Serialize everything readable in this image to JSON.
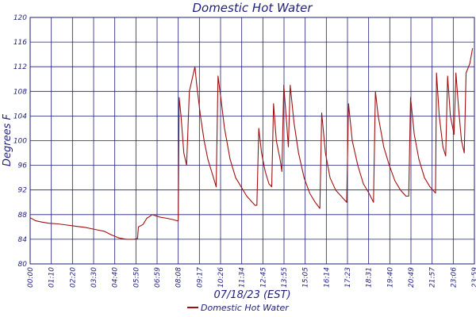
{
  "chart_data": {
    "type": "line",
    "title": "Domestic Hot Water",
    "xlabel": "07/18/23 (EST)",
    "ylabel": "Degrees F",
    "ylim": [
      80,
      120
    ],
    "yticks": [
      "80",
      "84",
      "88",
      "92",
      "96",
      "100",
      "104",
      "108",
      "112",
      "116",
      "120"
    ],
    "xticks": [
      "00:00",
      "01:10",
      "02:20",
      "03:30",
      "04:40",
      "05:50",
      "06:59",
      "08:08",
      "09:17",
      "10:26",
      "11:34",
      "12:45",
      "13:55",
      "15:05",
      "16:14",
      "17:23",
      "18:31",
      "19:40",
      "20:49",
      "21:57",
      "23:06",
      "23:59"
    ],
    "xlim_hours": [
      0,
      24
    ],
    "grid": true,
    "legend_position": "bottom-center",
    "series": [
      {
        "name": "Domestic Hot Water",
        "color": "#a01010",
        "points": [
          [
            0.0,
            87.5
          ],
          [
            0.3,
            87.0
          ],
          [
            0.6,
            86.8
          ],
          [
            1.0,
            86.6
          ],
          [
            1.5,
            86.5
          ],
          [
            2.0,
            86.3
          ],
          [
            2.5,
            86.1
          ],
          [
            3.0,
            85.9
          ],
          [
            3.5,
            85.6
          ],
          [
            4.0,
            85.3
          ],
          [
            4.4,
            84.7
          ],
          [
            4.8,
            84.2
          ],
          [
            5.2,
            84.0
          ],
          [
            5.6,
            84.0
          ],
          [
            5.8,
            84.1
          ],
          [
            5.85,
            86.0
          ],
          [
            6.1,
            86.4
          ],
          [
            6.3,
            87.4
          ],
          [
            6.6,
            88.0
          ],
          [
            7.0,
            87.6
          ],
          [
            7.4,
            87.4
          ],
          [
            7.7,
            87.2
          ],
          [
            7.95,
            87.0
          ],
          [
            8.0,
            87.0
          ],
          [
            8.05,
            107.0
          ],
          [
            8.15,
            104.0
          ],
          [
            8.3,
            98.0
          ],
          [
            8.45,
            96.0
          ],
          [
            8.6,
            108.0
          ],
          [
            8.75,
            110.0
          ],
          [
            8.9,
            112.0
          ],
          [
            9.0,
            109.0
          ],
          [
            9.2,
            104.0
          ],
          [
            9.4,
            100.0
          ],
          [
            9.6,
            97.0
          ],
          [
            9.8,
            95.0
          ],
          [
            9.95,
            93.5
          ],
          [
            10.05,
            92.5
          ],
          [
            10.15,
            110.5
          ],
          [
            10.3,
            107.0
          ],
          [
            10.5,
            102.0
          ],
          [
            10.8,
            97.0
          ],
          [
            11.1,
            94.0
          ],
          [
            11.4,
            92.5
          ],
          [
            11.7,
            91.0
          ],
          [
            12.0,
            90.0
          ],
          [
            12.15,
            89.5
          ],
          [
            12.25,
            89.5
          ],
          [
            12.35,
            102.0
          ],
          [
            12.5,
            98.0
          ],
          [
            12.7,
            95.0
          ],
          [
            12.9,
            93.0
          ],
          [
            13.05,
            92.5
          ],
          [
            13.15,
            106.0
          ],
          [
            13.3,
            100.0
          ],
          [
            13.5,
            97.0
          ],
          [
            13.6,
            95.0
          ],
          [
            13.7,
            109.0
          ],
          [
            13.85,
            103.0
          ],
          [
            13.95,
            99.0
          ],
          [
            14.05,
            109.0
          ],
          [
            14.25,
            103.0
          ],
          [
            14.5,
            98.0
          ],
          [
            14.8,
            94.0
          ],
          [
            15.1,
            91.5
          ],
          [
            15.4,
            90.0
          ],
          [
            15.65,
            89.0
          ],
          [
            15.75,
            104.5
          ],
          [
            15.95,
            98.0
          ],
          [
            16.2,
            94.0
          ],
          [
            16.5,
            92.0
          ],
          [
            16.8,
            91.0
          ],
          [
            17.1,
            90.0
          ],
          [
            17.2,
            106.0
          ],
          [
            17.4,
            100.0
          ],
          [
            17.7,
            96.0
          ],
          [
            18.0,
            93.0
          ],
          [
            18.3,
            91.5
          ],
          [
            18.55,
            90.0
          ],
          [
            18.65,
            108.0
          ],
          [
            18.8,
            104.0
          ],
          [
            19.1,
            99.0
          ],
          [
            19.4,
            96.0
          ],
          [
            19.7,
            93.5
          ],
          [
            20.0,
            92.0
          ],
          [
            20.3,
            91.0
          ],
          [
            20.45,
            91.0
          ],
          [
            20.55,
            107.0
          ],
          [
            20.75,
            101.0
          ],
          [
            21.0,
            97.0
          ],
          [
            21.3,
            94.0
          ],
          [
            21.6,
            92.5
          ],
          [
            21.9,
            91.5
          ],
          [
            21.95,
            111.0
          ],
          [
            22.1,
            104.0
          ],
          [
            22.3,
            99.0
          ],
          [
            22.45,
            97.5
          ],
          [
            22.55,
            110.5
          ],
          [
            22.7,
            104.0
          ],
          [
            22.9,
            101.0
          ],
          [
            23.0,
            111.0
          ],
          [
            23.15,
            105.0
          ],
          [
            23.3,
            100.0
          ],
          [
            23.45,
            98.0
          ],
          [
            23.55,
            111.0
          ],
          [
            23.75,
            112.5
          ],
          [
            23.9,
            115.0
          ]
        ]
      }
    ]
  }
}
